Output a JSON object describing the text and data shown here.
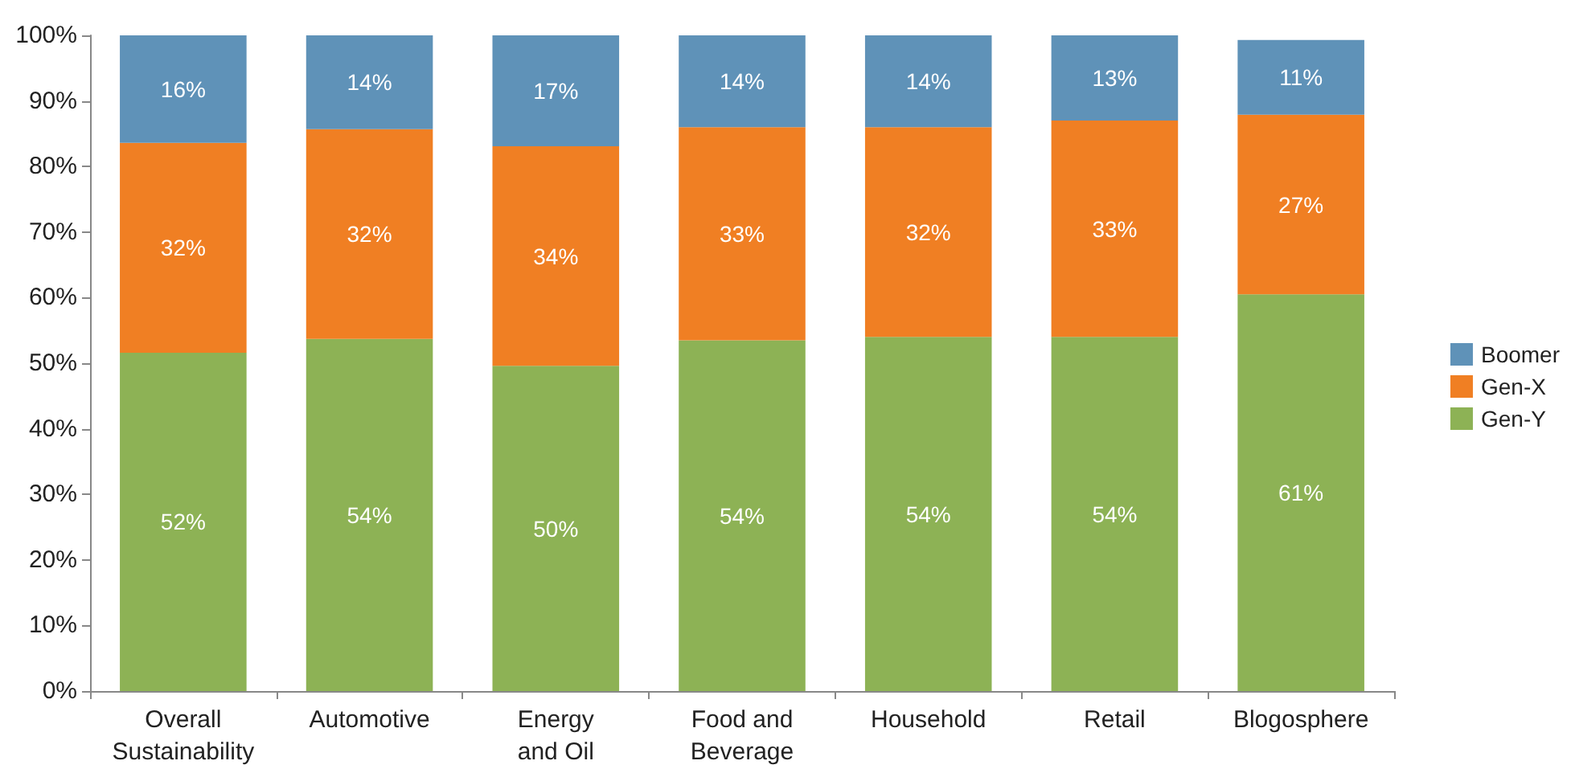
{
  "chart_data": {
    "type": "bar",
    "stacked": true,
    "categories": [
      "Overall\nSustainability",
      "Automotive",
      "Energy\nand Oil",
      "Food and\nBeverage",
      "Household",
      "Retail",
      "Blogosphere"
    ],
    "series": [
      {
        "name": "Gen-Y",
        "color": "#8db255",
        "values": [
          51.6,
          53.7,
          49.6,
          53.5,
          54,
          54,
          60.5
        ],
        "value_labels": [
          "52%",
          "54%",
          "50%",
          "54%",
          "54%",
          "54%",
          "61%"
        ]
      },
      {
        "name": "Gen-X",
        "color": "#f07f23",
        "values": [
          32.0,
          32.0,
          33.5,
          32.5,
          32,
          33,
          27.4
        ],
        "value_labels": [
          "32%",
          "32%",
          "34%",
          "33%",
          "32%",
          "33%",
          "27%"
        ]
      },
      {
        "name": "Boomer",
        "color": "#5f92b8",
        "values": [
          16.4,
          14.3,
          16.9,
          14,
          14,
          13,
          11.4
        ],
        "value_labels": [
          "16%",
          "14%",
          "17%",
          "14%",
          "14%",
          "13%",
          "11%"
        ]
      }
    ],
    "ylim": [
      0,
      100
    ],
    "yticks": [
      {
        "value": 0,
        "label": "0%"
      },
      {
        "value": 10,
        "label": "10%"
      },
      {
        "value": 20,
        "label": "20%"
      },
      {
        "value": 30,
        "label": "30%"
      },
      {
        "value": 40,
        "label": "40%"
      },
      {
        "value": 50,
        "label": "50%"
      },
      {
        "value": 60,
        "label": "60%"
      },
      {
        "value": 70,
        "label": "70%"
      },
      {
        "value": 80,
        "label": "80%"
      },
      {
        "value": 90,
        "label": "90%"
      },
      {
        "value": 100,
        "label": "100%"
      }
    ],
    "grid": false,
    "legend": "right"
  }
}
